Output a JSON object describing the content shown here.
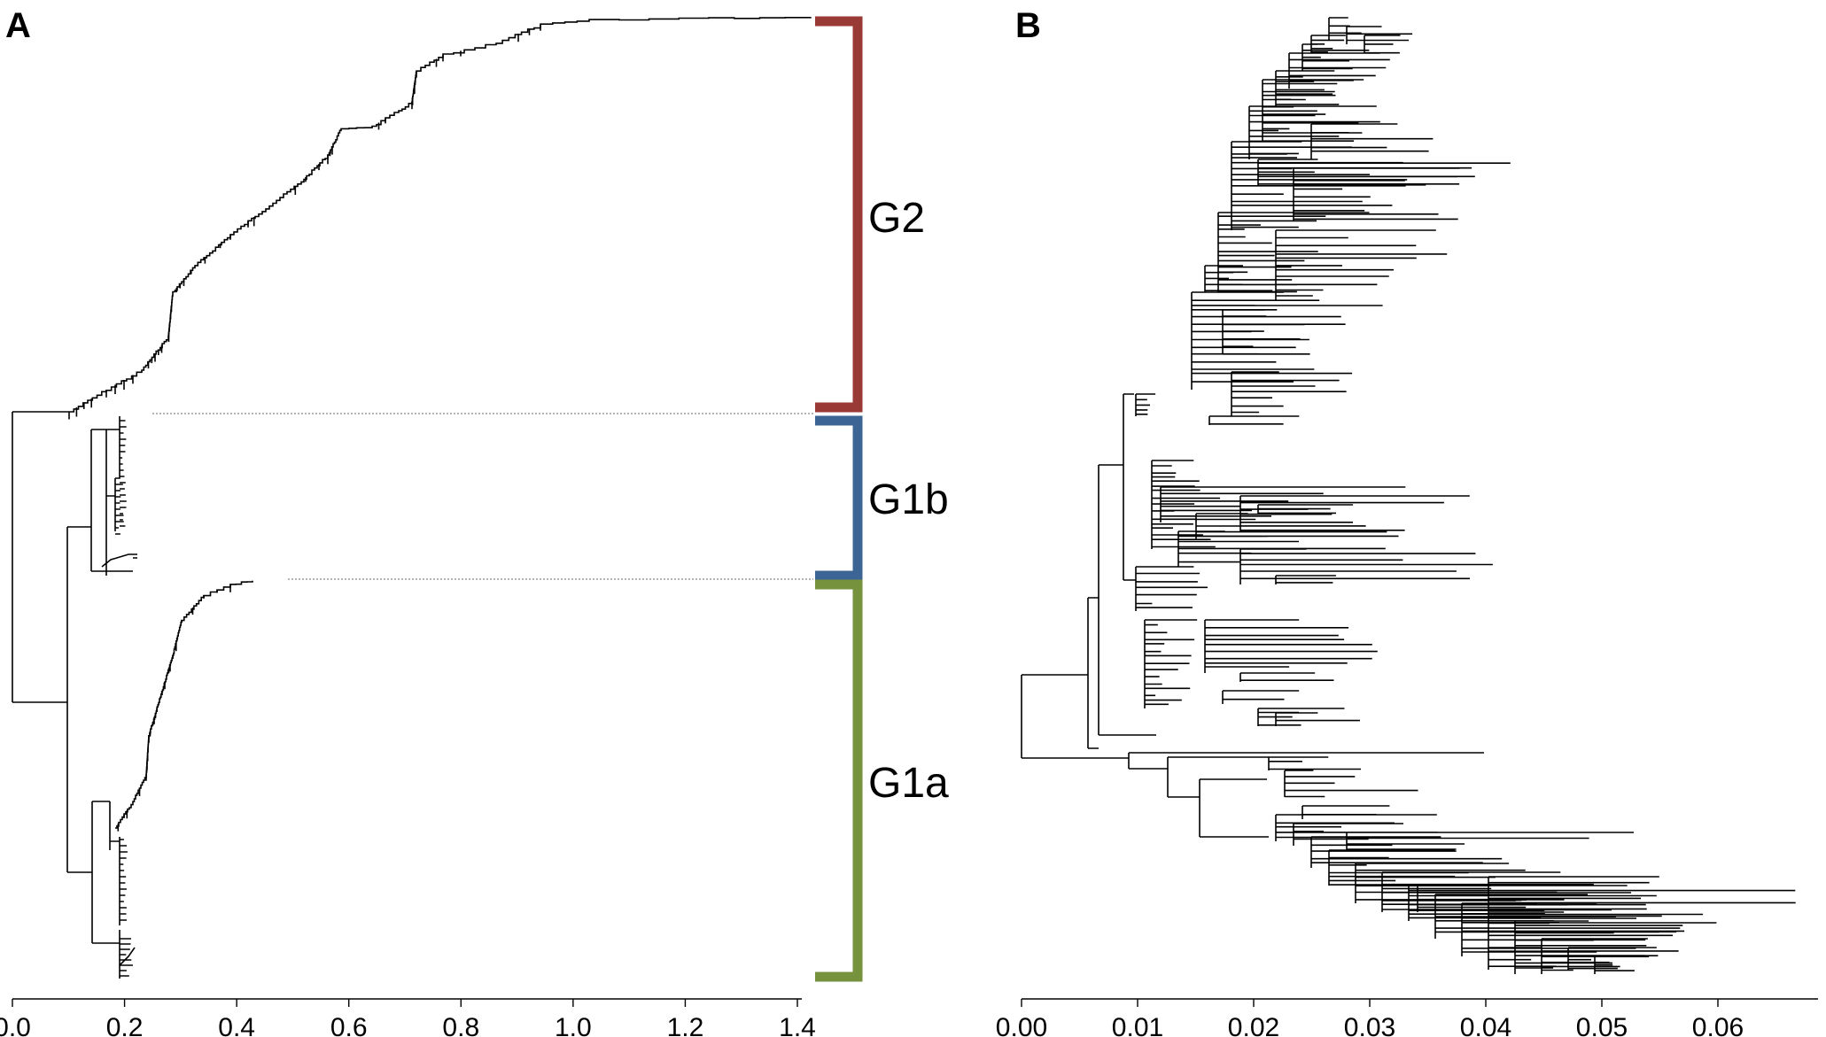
{
  "panels": [
    {
      "letter": "A",
      "axis_ticks": [
        "0.0",
        "0.2",
        "0.4",
        "0.6",
        "0.8",
        "1.0",
        "1.2",
        "1.4"
      ],
      "clades": [
        {
          "label": "G2",
          "color": "#9a3a36"
        },
        {
          "label": "G1b",
          "color": "#3c6596"
        },
        {
          "label": "G1a",
          "color": "#76923c"
        }
      ]
    },
    {
      "letter": "B",
      "axis_ticks": [
        "0.00",
        "0.01",
        "0.02",
        "0.03",
        "0.04",
        "0.05",
        "0.06"
      ]
    }
  ],
  "colors": {
    "branch": "#000000",
    "guide_line": "#888888"
  }
}
